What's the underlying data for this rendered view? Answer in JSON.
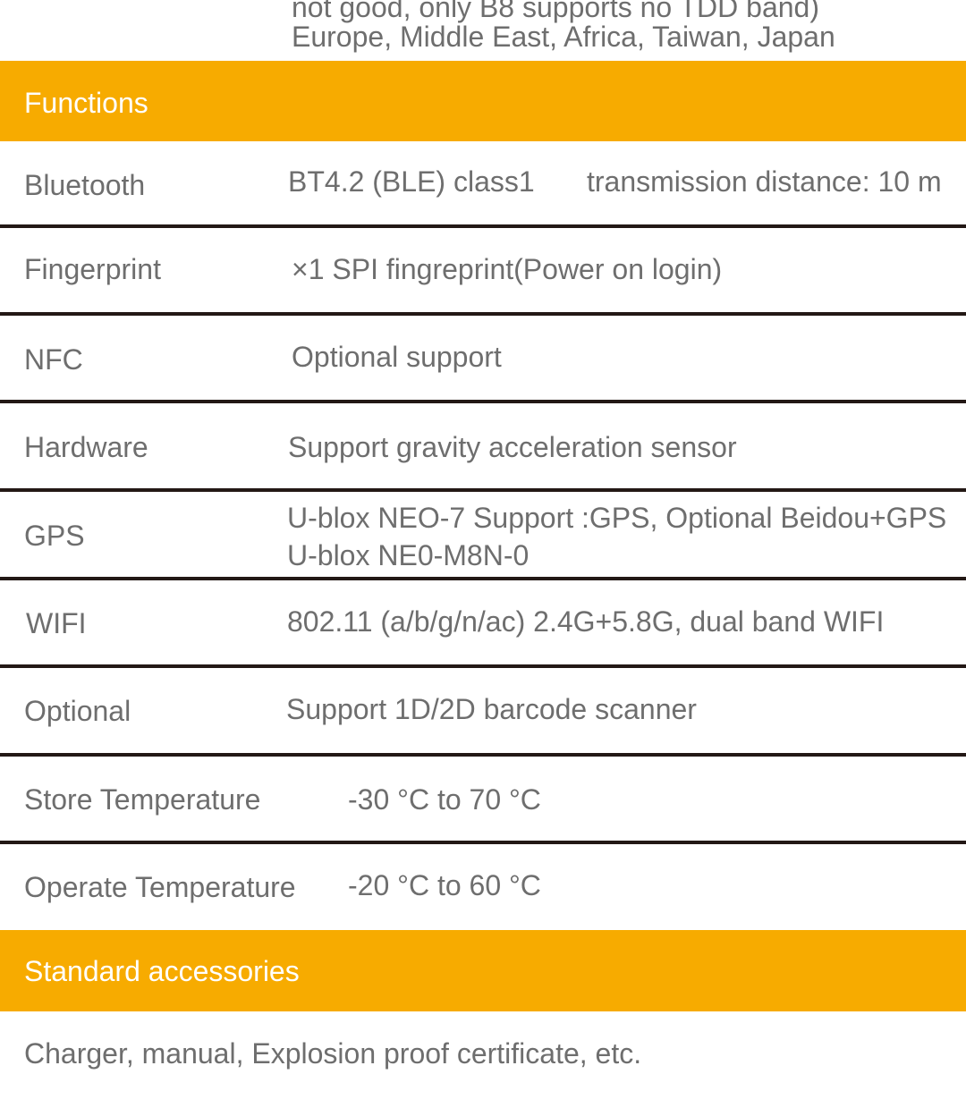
{
  "top_continuation": [
    "not good, only B8 supports no TDD band)",
    "Europe, Middle East, Africa, Taiwan, Japan"
  ],
  "colors": {
    "accent": "#f7ab00",
    "text": "#6e6e6e",
    "divider": "#231815"
  },
  "functions": {
    "heading": "Functions",
    "rows": [
      {
        "label": "Bluetooth",
        "value": "BT4.2 (BLE) class1",
        "value2": "transmission distance: 10 m"
      },
      {
        "label": "Fingerprint",
        "value": "×1 SPI fingreprint(Power on login)"
      },
      {
        "label": "NFC",
        "value": "Optional support"
      },
      {
        "label": "Hardware",
        "value": "Support gravity acceleration sensor"
      },
      {
        "label": "GPS",
        "value": "U-blox NEO-7 Support :GPS, Optional Beidou+GPS",
        "value2": "U-blox NE0-M8N-0"
      },
      {
        "label": "WIFI",
        "value": "802.11 (a/b/g/n/ac) 2.4G+5.8G, dual band WIFI"
      },
      {
        "label": "Optional",
        "value": "Support 1D/2D barcode scanner"
      },
      {
        "label": "Store Temperature",
        "value": "-30 °C to 70 °C"
      },
      {
        "label": "Operate Temperature",
        "value": "-20 °C to 60 °C"
      }
    ]
  },
  "accessories": {
    "heading": "Standard accessories",
    "value": "Charger, manual, Explosion proof certificate, etc."
  }
}
